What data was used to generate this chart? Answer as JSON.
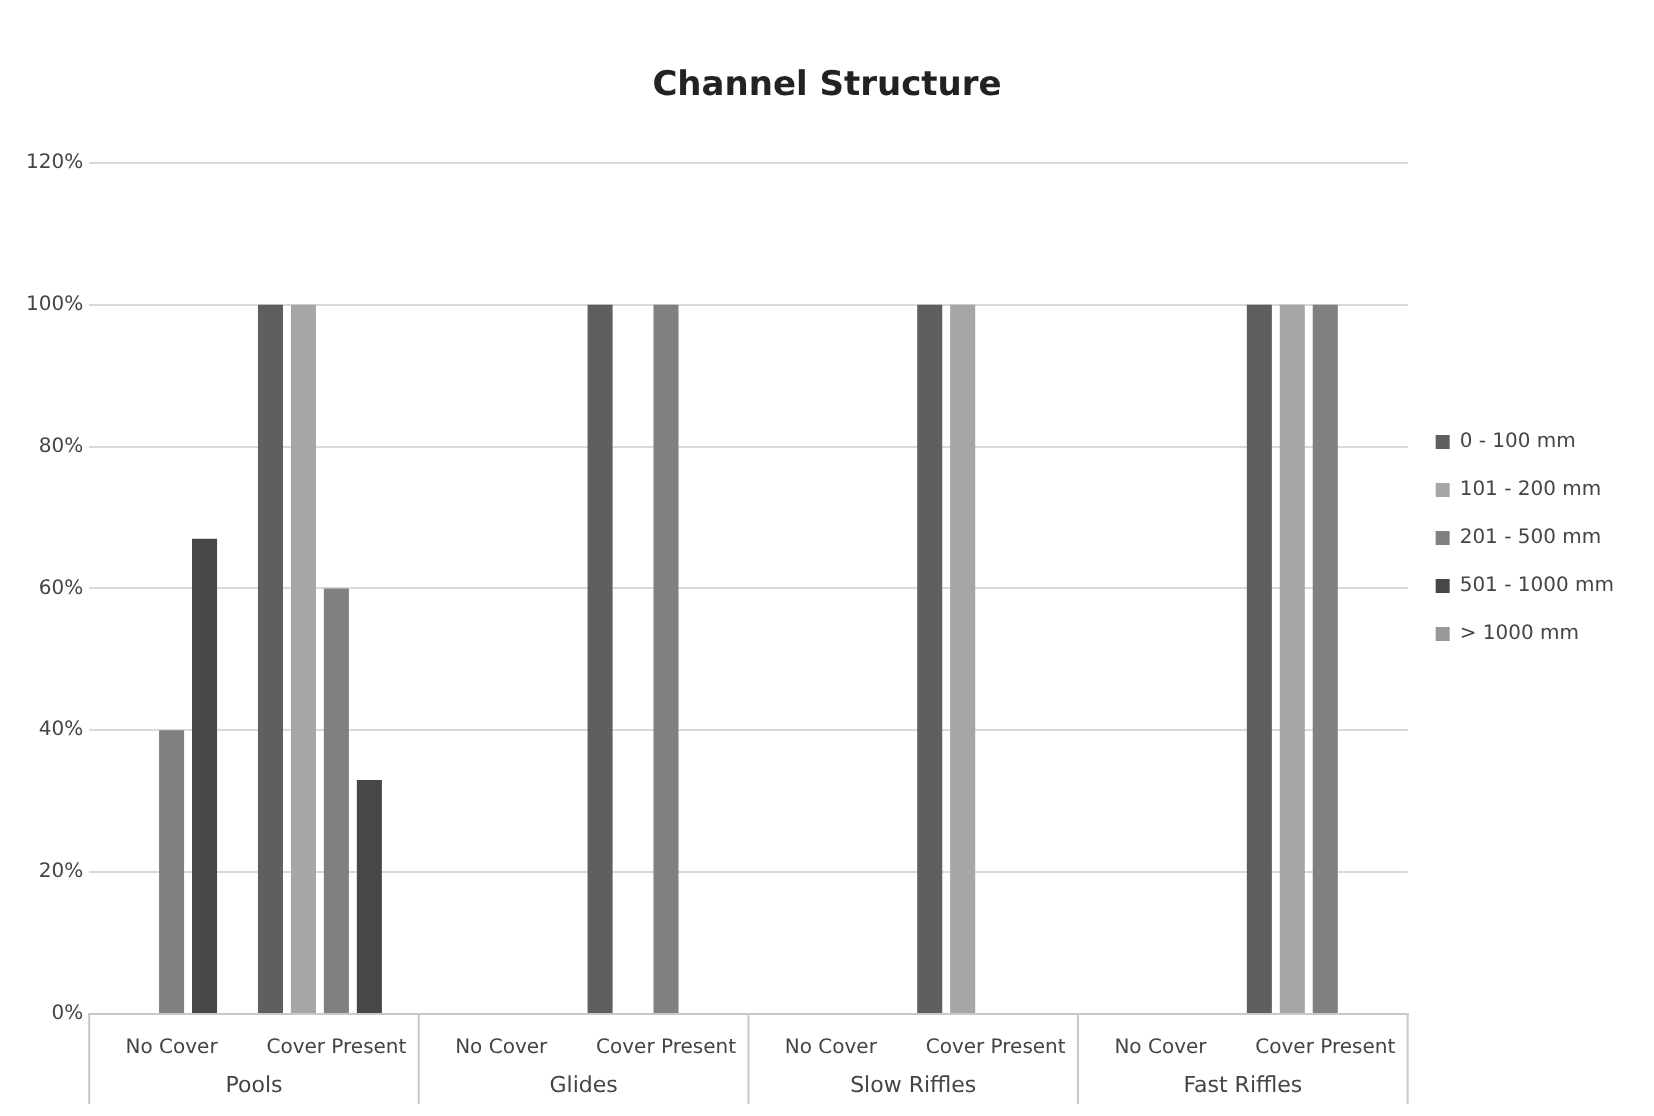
{
  "chart_data": {
    "type": "bar",
    "title": "Channel Structure",
    "categories": [
      "No Cover",
      "Cover Present",
      "No Cover",
      "Cover Present",
      "No Cover",
      "Cover Present",
      "No Cover",
      "Cover Present"
    ],
    "series": [
      {
        "name": "0 - 100 mm",
        "color": "#5f5f5f",
        "values": [
          0,
          100,
          0,
          100,
          0,
          100,
          0,
          100
        ]
      },
      {
        "name": "101 - 200 mm",
        "color": "#a6a6a6",
        "values": [
          0,
          100,
          0,
          0,
          0,
          100,
          0,
          100
        ]
      },
      {
        "name": "201 - 500 mm",
        "color": "#808080",
        "values": [
          40,
          60,
          0,
          100,
          0,
          0,
          0,
          100
        ]
      },
      {
        "name": "501 - 1000 mm",
        "color": "#474747",
        "values": [
          67,
          33,
          0,
          0,
          0,
          0,
          0,
          0
        ]
      },
      {
        "name": "> 1000 mm",
        "color": "#999999",
        "values": [
          0,
          0,
          0,
          0,
          0,
          0,
          0,
          0
        ]
      }
    ],
    "annotations": [
      "Pools",
      "Glides",
      "Slow Riffles",
      "Fast Riffles"
    ],
    "ylim": [
      0,
      120
    ],
    "yticks": [
      {
        "value": 0,
        "label": "0%"
      },
      {
        "value": 20,
        "label": "20%"
      },
      {
        "value": 40,
        "label": "40%"
      },
      {
        "value": 60,
        "label": "60%"
      },
      {
        "value": 80,
        "label": "80%"
      },
      {
        "value": 100,
        "label": "100%"
      },
      {
        "value": 120,
        "label": "120%"
      }
    ],
    "grid": "y",
    "legend": "right"
  }
}
